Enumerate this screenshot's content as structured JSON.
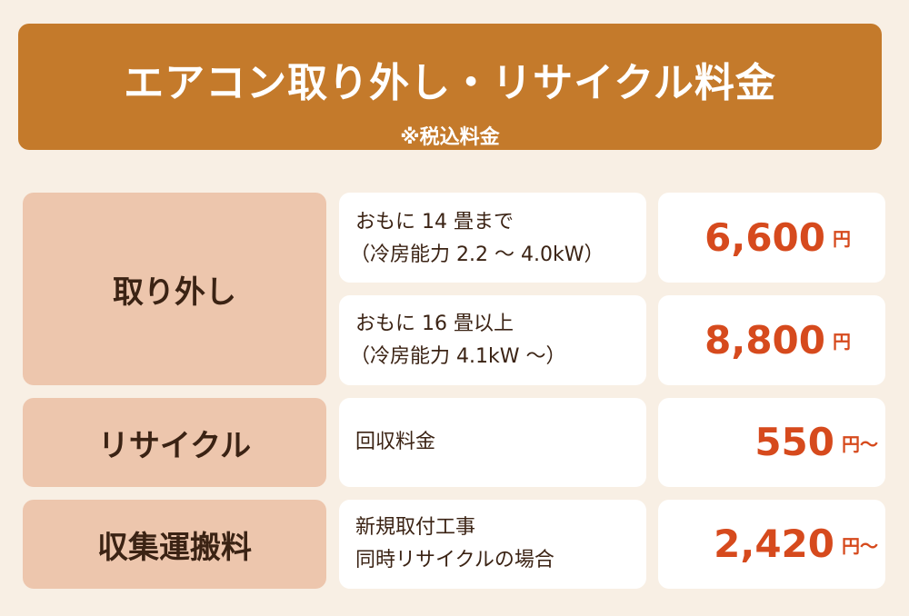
{
  "header": {
    "title": "エアコン取り外し・リサイクル料金",
    "note": "※税込料金"
  },
  "rows": [
    {
      "category": "取り外し",
      "items": [
        {
          "line1": "おもに 14 畳まで",
          "line2": "（冷房能力 2.2 ～ 4.0kW）",
          "amount": "6,600",
          "unit": "円"
        },
        {
          "line1": "おもに 16 畳以上",
          "line2": "（冷房能力 4.1kW ～）",
          "amount": "8,800",
          "unit": "円"
        }
      ]
    },
    {
      "category": "リサイクル",
      "items": [
        {
          "line1": "回収料金",
          "amount": "550",
          "unit": "円～"
        }
      ]
    },
    {
      "category": "収集運搬料",
      "items": [
        {
          "line1": "新規取付工事",
          "line2": "同時リサイクルの場合",
          "amount": "2,420",
          "unit": "円～"
        }
      ]
    }
  ]
}
